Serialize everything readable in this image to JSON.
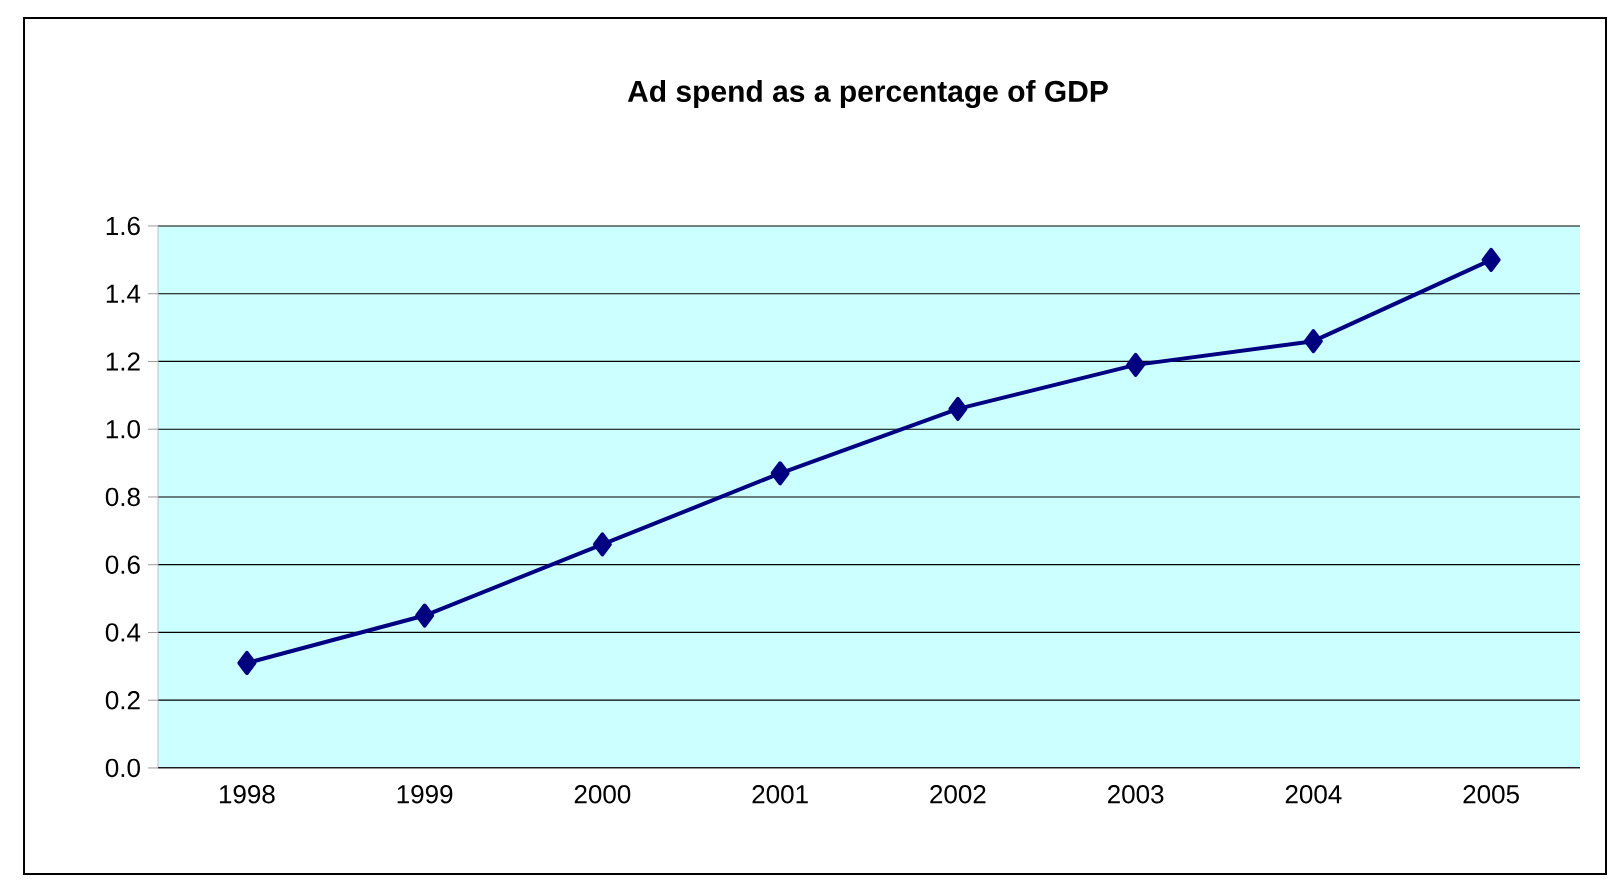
{
  "chart_data": {
    "type": "line",
    "title": "Ad spend as a percentage of GDP",
    "categories": [
      "1998",
      "1999",
      "2000",
      "2001",
      "2002",
      "2003",
      "2004",
      "2005"
    ],
    "series": [
      {
        "color": "#000080",
        "values": [
          0.31,
          0.45,
          0.66,
          0.87,
          1.06,
          1.19,
          1.26,
          1.5
        ]
      }
    ],
    "ylim": [
      0,
      1.6
    ],
    "yticks": [
      {
        "value": 0,
        "label": "0.0"
      },
      {
        "value": 0.2,
        "label": "0.2"
      },
      {
        "value": 0.4,
        "label": "0.4"
      },
      {
        "value": 0.6,
        "label": "0.6"
      },
      {
        "value": 0.8,
        "label": "0.8"
      },
      {
        "value": 1.0,
        "label": "1.0"
      },
      {
        "value": 1.2,
        "label": "1.2"
      },
      {
        "value": 1.4,
        "label": "1.4"
      },
      {
        "value": 1.6,
        "label": "1.6"
      }
    ],
    "grid": "y",
    "marker": "diamond",
    "line_style": "solid"
  }
}
